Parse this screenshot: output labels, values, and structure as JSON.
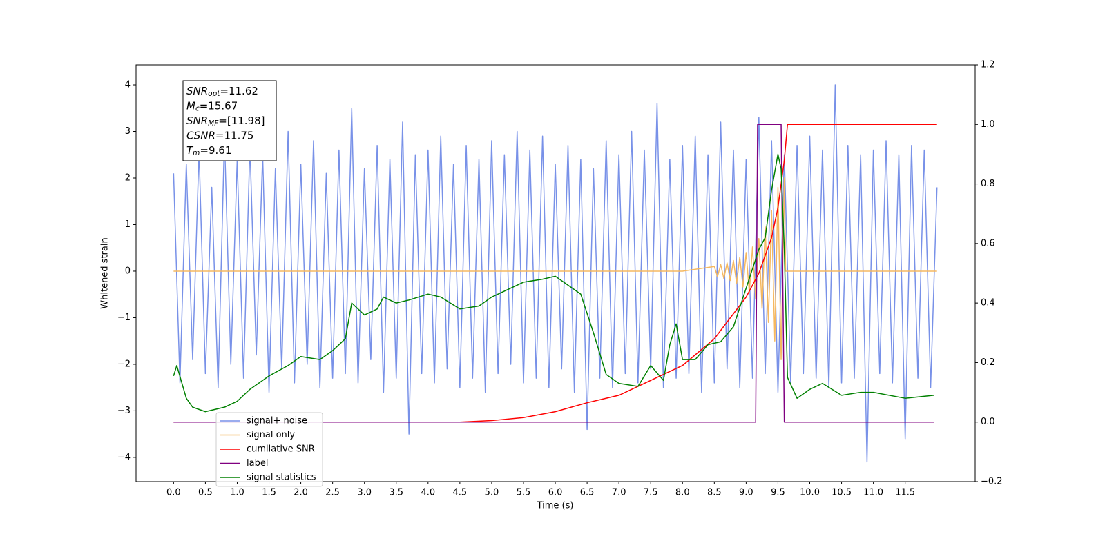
{
  "chart_data": {
    "type": "line",
    "xlabel": "Time (s)",
    "ylabel": "Whitened strain",
    "xlim": [
      -0.59,
      12.6
    ],
    "ylim": [
      -4.52,
      4.43
    ],
    "y2lim": [
      -0.2,
      1.2
    ],
    "xticks": [
      {
        "value": 0,
        "label": "0.0"
      },
      {
        "value": 0.5,
        "label": "0.5"
      },
      {
        "value": 1,
        "label": "1.0"
      },
      {
        "value": 1.5,
        "label": "1.5"
      },
      {
        "value": 2,
        "label": "2.0"
      },
      {
        "value": 2.5,
        "label": "2.5"
      },
      {
        "value": 3,
        "label": "3.0"
      },
      {
        "value": 3.5,
        "label": "3.5"
      },
      {
        "value": 4,
        "label": "4.0"
      },
      {
        "value": 4.5,
        "label": "4.5"
      },
      {
        "value": 5,
        "label": "5.0"
      },
      {
        "value": 5.5,
        "label": "5.5"
      },
      {
        "value": 6,
        "label": "6.0"
      },
      {
        "value": 6.5,
        "label": "6.5"
      },
      {
        "value": 7,
        "label": "7.0"
      },
      {
        "value": 7.5,
        "label": "7.5"
      },
      {
        "value": 8,
        "label": "8.0"
      },
      {
        "value": 8.5,
        "label": "8.5"
      },
      {
        "value": 9,
        "label": "9.0"
      },
      {
        "value": 9.5,
        "label": "9.5"
      },
      {
        "value": 10,
        "label": "10.0"
      },
      {
        "value": 10.5,
        "label": "10.5"
      },
      {
        "value": 11,
        "label": "11.0"
      },
      {
        "value": 11.5,
        "label": "11.5"
      }
    ],
    "yticks": [
      {
        "value": -4,
        "label": "−4"
      },
      {
        "value": -3,
        "label": "−3"
      },
      {
        "value": -2,
        "label": "−2"
      },
      {
        "value": -1,
        "label": "−1"
      },
      0,
      1,
      2,
      3,
      4
    ],
    "y2ticks": [
      {
        "value": -0.2,
        "label": "−0.2"
      },
      {
        "value": 0,
        "label": "0.0"
      },
      0.2,
      0.4,
      0.6,
      0.8,
      {
        "value": 1,
        "label": "1.0"
      },
      1.2
    ],
    "annotations": [
      {
        "base": "SNR",
        "sub": "opt",
        "text": "=11.62"
      },
      {
        "base": "M",
        "sub": "c",
        "text": "=15.67"
      },
      {
        "base": "SNR",
        "sub": "MF",
        "text": "=[11.98]"
      },
      {
        "base": "CSNR",
        "text": "=11.75"
      },
      {
        "base": "T",
        "sub": "m",
        "text": "=9.61"
      }
    ],
    "series": [
      {
        "name": "signal+ noise",
        "color": "#7891e8",
        "x": [
          0,
          0.1,
          0.2,
          0.3,
          0.4,
          0.5,
          0.6,
          0.7,
          0.8,
          0.9,
          1,
          1.1,
          1.2,
          1.3,
          1.4,
          1.5,
          1.6,
          1.7,
          1.8,
          1.9,
          2,
          2.1,
          2.2,
          2.3,
          2.4,
          2.5,
          2.6,
          2.7,
          2.8,
          2.9,
          3,
          3.1,
          3.2,
          3.3,
          3.4,
          3.5,
          3.6,
          3.7,
          3.8,
          3.9,
          4,
          4.1,
          4.2,
          4.3,
          4.4,
          4.5,
          4.6,
          4.7,
          4.8,
          4.9,
          5,
          5.1,
          5.2,
          5.3,
          5.4,
          5.5,
          5.6,
          5.7,
          5.8,
          5.9,
          6,
          6.1,
          6.2,
          6.3,
          6.4,
          6.5,
          6.6,
          6.7,
          6.8,
          6.9,
          7,
          7.1,
          7.2,
          7.3,
          7.4,
          7.5,
          7.6,
          7.7,
          7.8,
          7.9,
          8,
          8.1,
          8.2,
          8.3,
          8.4,
          8.5,
          8.6,
          8.7,
          8.8,
          8.9,
          9,
          9.1,
          9.2,
          9.3,
          9.4,
          9.5,
          9.6,
          9.7,
          9.8,
          9.9,
          10,
          10.1,
          10.2,
          10.3,
          10.4,
          10.5,
          10.6,
          10.7,
          10.8,
          10.9,
          11,
          11.1,
          11.2,
          11.3,
          11.4,
          11.5,
          11.6,
          11.7,
          11.8,
          11.9,
          12
        ],
        "values": [
          2.1,
          -2.4,
          2.3,
          -1.9,
          2.6,
          -2.2,
          1.8,
          -2.5,
          2.9,
          -2.0,
          2.4,
          -2.3,
          2.7,
          -1.8,
          2.5,
          -2.6,
          2.2,
          -2.1,
          3.0,
          -2.4,
          2.3,
          -2.0,
          2.8,
          -2.5,
          2.1,
          -2.3,
          2.6,
          -2.2,
          3.5,
          -2.4,
          2.2,
          -1.9,
          2.7,
          -2.6,
          2.4,
          -2.3,
          3.2,
          -3.5,
          2.5,
          -2.2,
          2.6,
          -2.4,
          2.9,
          -2.1,
          2.3,
          -2.5,
          2.7,
          -2.3,
          2.4,
          -2.6,
          2.8,
          -2.2,
          2.5,
          -2.0,
          3.0,
          -2.4,
          2.6,
          -2.3,
          2.9,
          -2.5,
          2.3,
          -2.1,
          2.7,
          -2.6,
          2.4,
          -3.4,
          2.2,
          -2.3,
          2.8,
          -2.5,
          2.5,
          -2.2,
          3.0,
          -2.4,
          2.6,
          -2.1,
          3.6,
          -2.5,
          2.4,
          -2.3,
          2.7,
          -2.2,
          2.9,
          -2.6,
          2.5,
          -2.4,
          3.2,
          -2.1,
          2.6,
          -2.5,
          2.4,
          -2.3,
          3.3,
          -2.2,
          2.8,
          -2.6,
          2.5,
          -2.4,
          2.7,
          -2.2,
          2.9,
          -2.3,
          2.6,
          -2.5,
          4.0,
          -2.4,
          2.7,
          -2.3,
          2.5,
          -4.1,
          2.6,
          -2.2,
          2.8,
          -2.4,
          2.5,
          -3.6,
          2.7,
          -2.3,
          2.6,
          -2.5,
          1.8
        ]
      },
      {
        "name": "signal only",
        "color": "#f5b860",
        "x": [
          0,
          8,
          8.5,
          8.55,
          8.6,
          8.65,
          8.7,
          8.75,
          8.8,
          8.85,
          8.9,
          8.95,
          9,
          9.05,
          9.1,
          9.15,
          9.2,
          9.25,
          9.3,
          9.35,
          9.4,
          9.45,
          9.5,
          9.55,
          9.6,
          9.62,
          12
        ],
        "values": [
          0,
          0,
          0.1,
          -0.12,
          0.14,
          -0.16,
          0.18,
          -0.2,
          0.23,
          -0.26,
          0.3,
          -0.34,
          0.4,
          -0.46,
          0.52,
          -0.6,
          0.7,
          -0.8,
          0.95,
          -1.1,
          1.3,
          -1.5,
          1.8,
          -1.9,
          2.0,
          0,
          0
        ]
      },
      {
        "name": "cumilative SNR",
        "color": "#ff0000",
        "axis": "y2",
        "x": [
          0,
          4.5,
          5,
          5.5,
          6,
          6.5,
          7,
          7.5,
          8,
          8.5,
          9,
          9.2,
          9.4,
          9.5,
          9.6,
          9.65,
          12
        ],
        "values": [
          0,
          0,
          0.005,
          0.015,
          0.035,
          0.065,
          0.09,
          0.14,
          0.19,
          0.28,
          0.42,
          0.5,
          0.62,
          0.72,
          0.88,
          1.0,
          1.0
        ]
      },
      {
        "name": "label",
        "color": "#800080",
        "axis": "y2",
        "x": [
          0,
          9.15,
          9.18,
          9.55,
          9.6,
          11.95
        ],
        "values": [
          0,
          0,
          1,
          1,
          0,
          0
        ]
      },
      {
        "name": "signal statistics",
        "color": "#008000",
        "axis": "y2",
        "x": [
          0,
          0.05,
          0.2,
          0.3,
          0.5,
          0.8,
          1,
          1.2,
          1.5,
          1.8,
          2,
          2.3,
          2.5,
          2.7,
          2.8,
          3,
          3.2,
          3.3,
          3.5,
          3.7,
          4,
          4.2,
          4.5,
          4.8,
          5,
          5.5,
          5.8,
          6,
          6.2,
          6.4,
          6.6,
          6.8,
          7,
          7.3,
          7.5,
          7.7,
          7.8,
          7.9,
          8,
          8.2,
          8.4,
          8.6,
          8.8,
          9,
          9.2,
          9.3,
          9.4,
          9.5,
          9.55,
          9.6,
          9.65,
          9.8,
          10,
          10.2,
          10.5,
          10.8,
          11,
          11.5,
          11.95
        ],
        "values": [
          0.155,
          0.19,
          0.08,
          0.05,
          0.035,
          0.05,
          0.07,
          0.11,
          0.155,
          0.19,
          0.22,
          0.21,
          0.24,
          0.28,
          0.4,
          0.36,
          0.38,
          0.42,
          0.4,
          0.41,
          0.43,
          0.42,
          0.38,
          0.39,
          0.42,
          0.47,
          0.48,
          0.49,
          0.46,
          0.43,
          0.3,
          0.16,
          0.13,
          0.12,
          0.19,
          0.14,
          0.26,
          0.33,
          0.21,
          0.21,
          0.26,
          0.27,
          0.32,
          0.45,
          0.58,
          0.62,
          0.78,
          0.9,
          0.85,
          0.58,
          0.15,
          0.08,
          0.11,
          0.13,
          0.09,
          0.1,
          0.1,
          0.08,
          0.09
        ]
      }
    ]
  }
}
